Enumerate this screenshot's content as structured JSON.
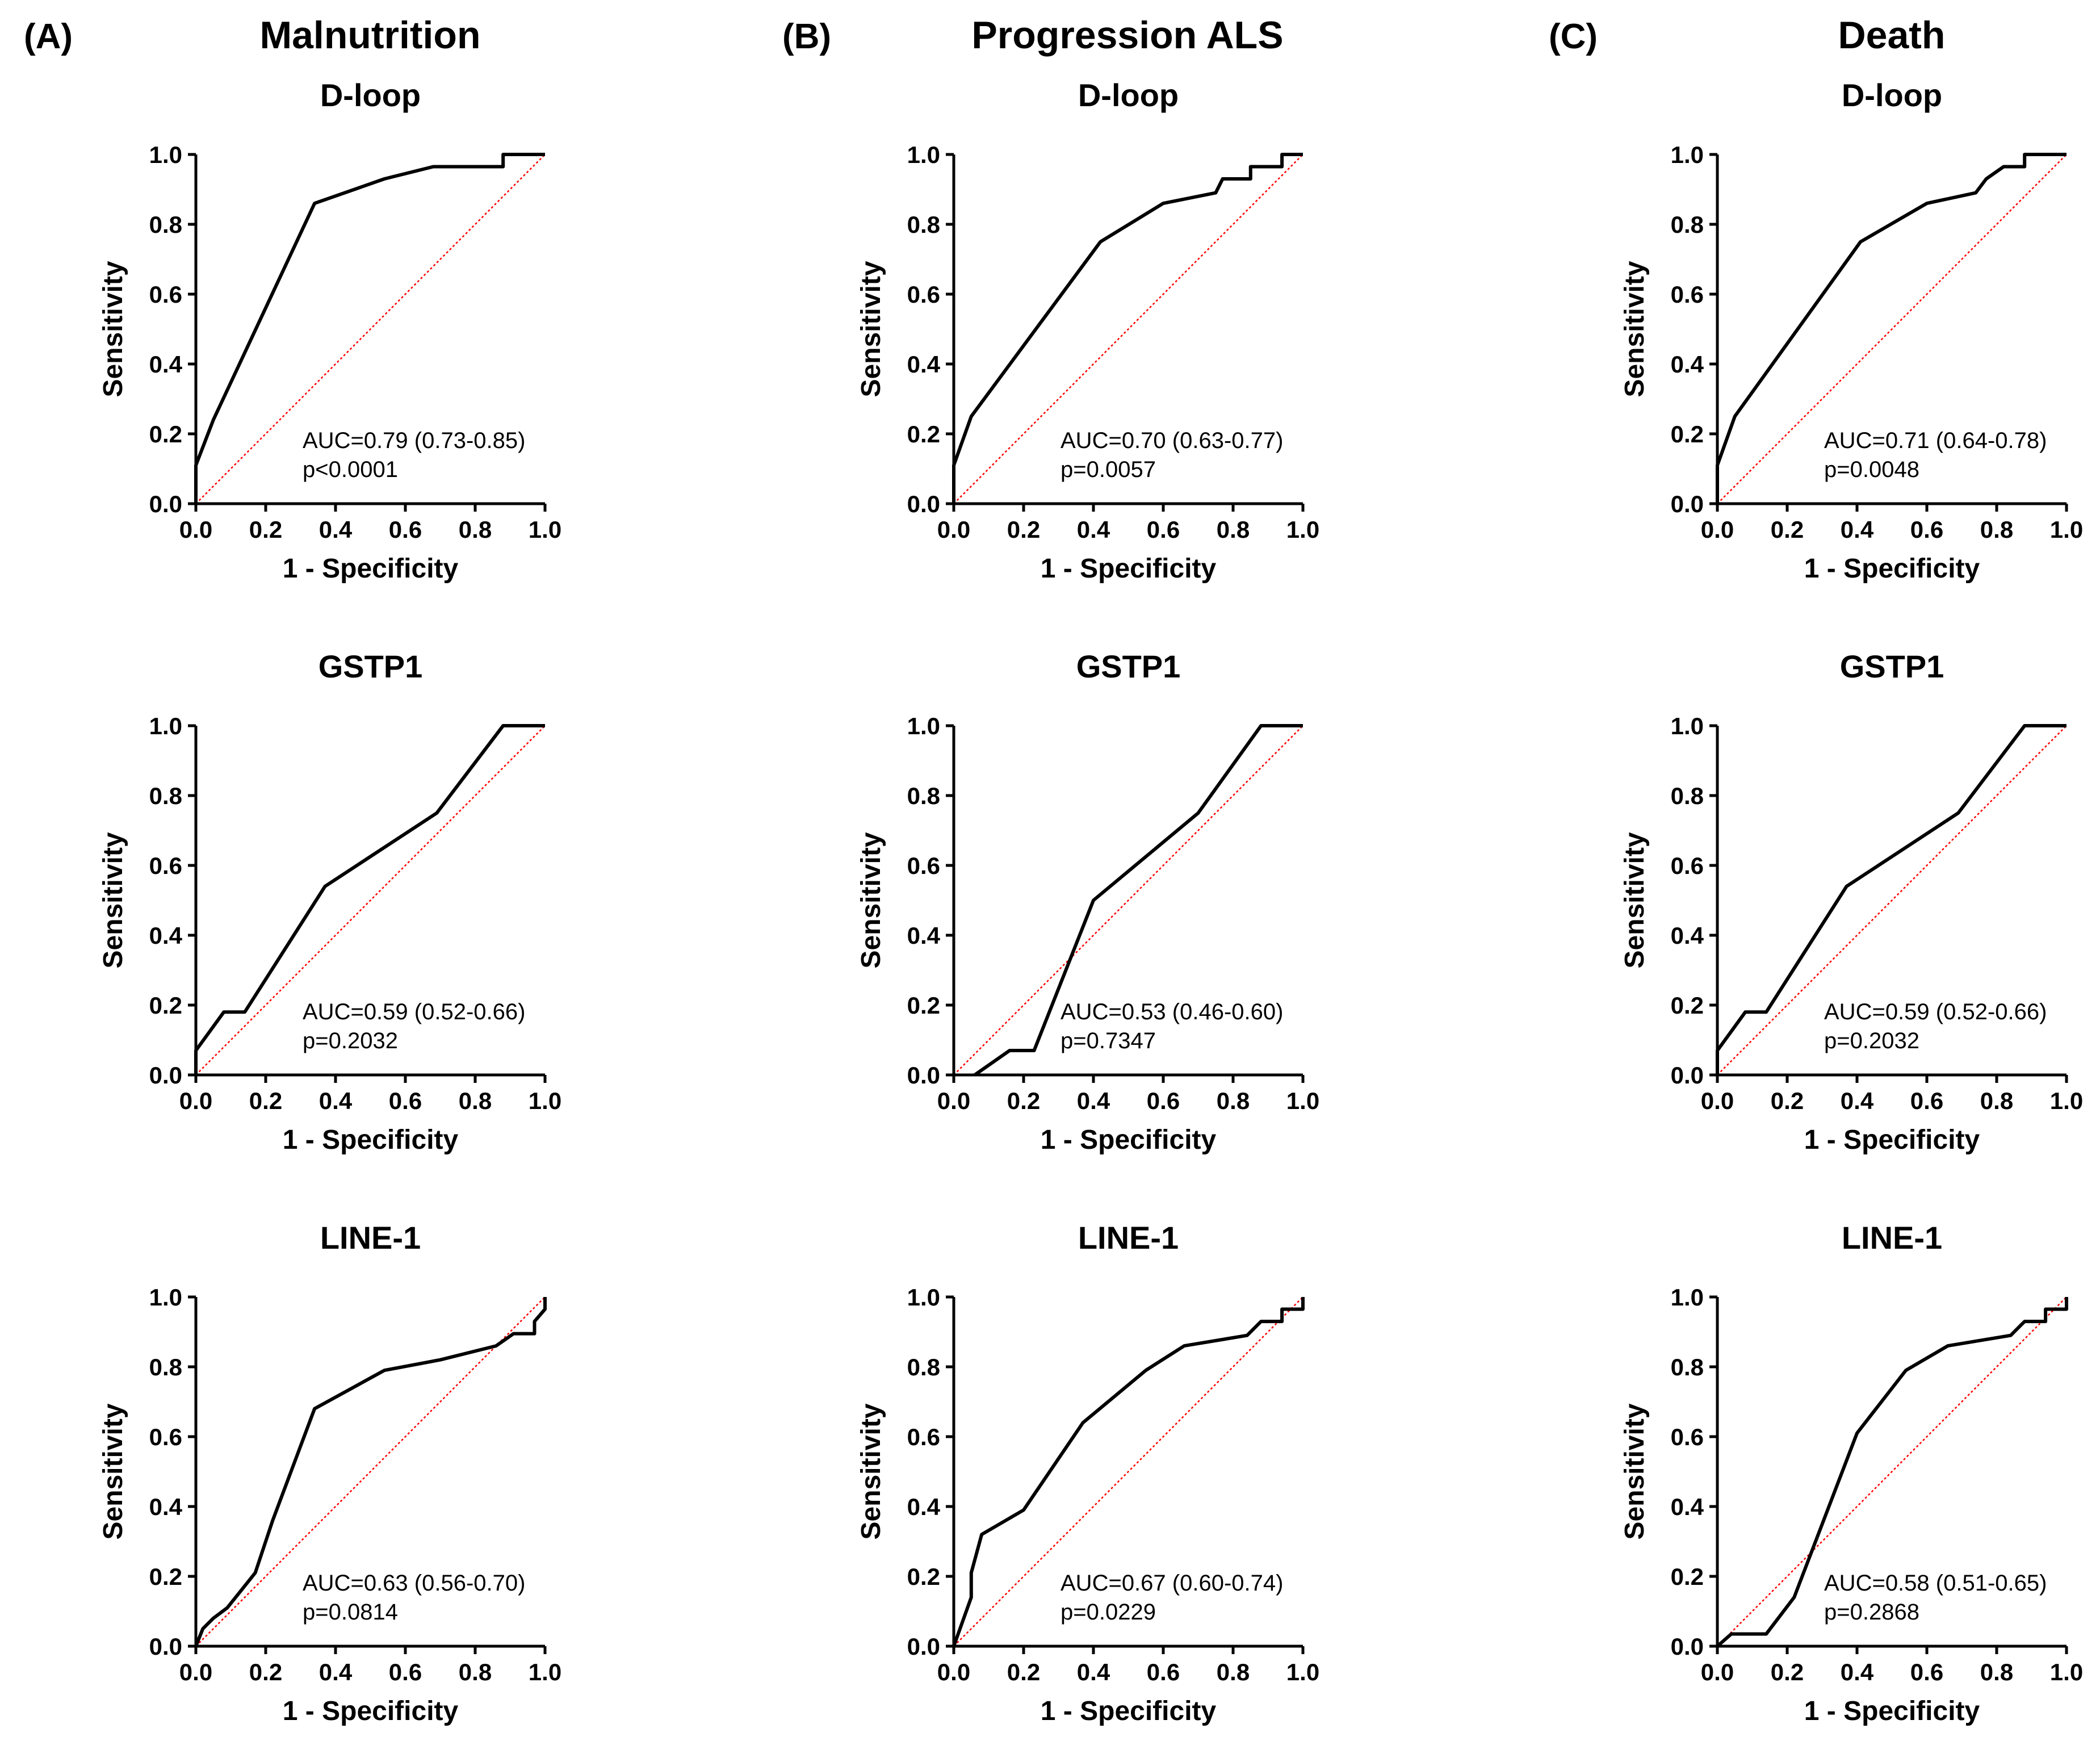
{
  "columns": [
    {
      "letter": "(A)",
      "title": "Malnutrition"
    },
    {
      "letter": "(B)",
      "title": "Progression ALS"
    },
    {
      "letter": "(C)",
      "title": "Death"
    }
  ],
  "axis_labels": {
    "x": "1 - Specificity",
    "y": "Sensitivity"
  },
  "ticks": [
    "0.0",
    "0.2",
    "0.4",
    "0.6",
    "0.8",
    "1.0"
  ],
  "colors": {
    "curve": "#000000",
    "reference": "#ff0000"
  },
  "chart_data": [
    {
      "type": "line",
      "column": "Malnutrition",
      "title": "D-loop",
      "xlabel": "1 - Specificity",
      "ylabel": "Sensitivity",
      "xlim": [
        0,
        1
      ],
      "ylim": [
        0,
        1
      ],
      "auc_text": "AUC=0.79 (0.73-0.85)",
      "p_text": "p<0.0001",
      "x": [
        0,
        0,
        0.05,
        0.34,
        0.54,
        0.68,
        0.88,
        0.88,
        1.0
      ],
      "y": [
        0,
        0.11,
        0.24,
        0.86,
        0.93,
        0.965,
        0.965,
        1.0,
        1.0
      ]
    },
    {
      "type": "line",
      "column": "Progression ALS",
      "title": "D-loop",
      "xlabel": "1 - Specificity",
      "ylabel": "Sensitivity",
      "xlim": [
        0,
        1
      ],
      "ylim": [
        0,
        1
      ],
      "auc_text": "AUC=0.70 (0.63-0.77)",
      "p_text": "p=0.0057",
      "x": [
        0,
        0,
        0.05,
        0.42,
        0.6,
        0.75,
        0.77,
        0.85,
        0.85,
        0.94,
        0.94,
        1.0
      ],
      "y": [
        0,
        0.11,
        0.25,
        0.75,
        0.86,
        0.89,
        0.93,
        0.93,
        0.965,
        0.965,
        1.0,
        1.0
      ]
    },
    {
      "type": "line",
      "column": "Death",
      "title": "D-loop",
      "xlabel": "1 - Specificity",
      "ylabel": "Sensitivity",
      "xlim": [
        0,
        1
      ],
      "ylim": [
        0,
        1
      ],
      "auc_text": "AUC=0.71 (0.64-0.78)",
      "p_text": "p=0.0048",
      "x": [
        0,
        0,
        0.05,
        0.41,
        0.6,
        0.74,
        0.77,
        0.82,
        0.88,
        0.88,
        1.0
      ],
      "y": [
        0,
        0.11,
        0.25,
        0.75,
        0.86,
        0.89,
        0.93,
        0.965,
        0.965,
        1.0,
        1.0
      ]
    },
    {
      "type": "line",
      "column": "Malnutrition",
      "title": "GSTP1",
      "xlabel": "1 - Specificity",
      "ylabel": "Sensitivity",
      "xlim": [
        0,
        1
      ],
      "ylim": [
        0,
        1
      ],
      "auc_text": "AUC=0.59 (0.52-0.66)",
      "p_text": "p=0.2032",
      "x": [
        0,
        0,
        0.08,
        0.14,
        0.37,
        0.69,
        0.88,
        1.0
      ],
      "y": [
        0,
        0.07,
        0.18,
        0.18,
        0.54,
        0.75,
        1.0,
        1.0
      ]
    },
    {
      "type": "line",
      "column": "Progression ALS",
      "title": "GSTP1",
      "xlabel": "1 - Specificity",
      "ylabel": "Sensitivity",
      "xlim": [
        0,
        1
      ],
      "ylim": [
        0,
        1
      ],
      "auc_text": "AUC=0.53 (0.46-0.60)",
      "p_text": "p=0.7347",
      "x": [
        0.06,
        0.16,
        0.23,
        0.4,
        0.7,
        0.88,
        1.0
      ],
      "y": [
        0,
        0.07,
        0.07,
        0.5,
        0.75,
        1.0,
        1.0
      ]
    },
    {
      "type": "line",
      "column": "Death",
      "title": "GSTP1",
      "xlabel": "1 - Specificity",
      "ylabel": "Sensitivity",
      "xlim": [
        0,
        1
      ],
      "ylim": [
        0,
        1
      ],
      "auc_text": "AUC=0.59 (0.52-0.66)",
      "p_text": "p=0.2032",
      "x": [
        0,
        0,
        0.08,
        0.14,
        0.37,
        0.69,
        0.88,
        1.0
      ],
      "y": [
        0,
        0.07,
        0.18,
        0.18,
        0.54,
        0.75,
        1.0,
        1.0
      ]
    },
    {
      "type": "line",
      "column": "Malnutrition",
      "title": "LINE-1",
      "xlabel": "1 - Specificity",
      "ylabel": "Sensitivity",
      "xlim": [
        0,
        1
      ],
      "ylim": [
        0,
        1
      ],
      "auc_text": "AUC=0.63 (0.56-0.70)",
      "p_text": "p=0.0814",
      "x": [
        0,
        0.02,
        0.05,
        0.09,
        0.17,
        0.22,
        0.34,
        0.54,
        0.7,
        0.86,
        0.91,
        0.97,
        0.97,
        1.0,
        1.0
      ],
      "y": [
        0,
        0.05,
        0.08,
        0.11,
        0.21,
        0.36,
        0.68,
        0.79,
        0.82,
        0.86,
        0.895,
        0.895,
        0.93,
        0.965,
        1.0
      ]
    },
    {
      "type": "line",
      "column": "Progression ALS",
      "title": "LINE-1",
      "xlabel": "1 - Specificity",
      "ylabel": "Sensitivity",
      "xlim": [
        0,
        1
      ],
      "ylim": [
        0,
        1
      ],
      "auc_text": "AUC=0.67 (0.60-0.74)",
      "p_text": "p=0.0229",
      "x": [
        0,
        0.05,
        0.05,
        0.08,
        0.2,
        0.37,
        0.55,
        0.66,
        0.84,
        0.88,
        0.94,
        0.94,
        1.0,
        1.0
      ],
      "y": [
        0,
        0.14,
        0.21,
        0.32,
        0.39,
        0.64,
        0.79,
        0.86,
        0.89,
        0.93,
        0.93,
        0.965,
        0.965,
        1.0
      ]
    },
    {
      "type": "line",
      "column": "Death",
      "title": "LINE-1",
      "xlabel": "1 - Specificity",
      "ylabel": "Sensitivity",
      "xlim": [
        0,
        1
      ],
      "ylim": [
        0,
        1
      ],
      "auc_text": "AUC=0.58 (0.51-0.65)",
      "p_text": "p=0.2868",
      "x": [
        0,
        0.04,
        0.14,
        0.22,
        0.4,
        0.54,
        0.66,
        0.84,
        0.88,
        0.94,
        0.94,
        1.0,
        1.0
      ],
      "y": [
        0,
        0.035,
        0.035,
        0.14,
        0.61,
        0.79,
        0.86,
        0.89,
        0.93,
        0.93,
        0.965,
        0.965,
        1.0
      ]
    }
  ]
}
